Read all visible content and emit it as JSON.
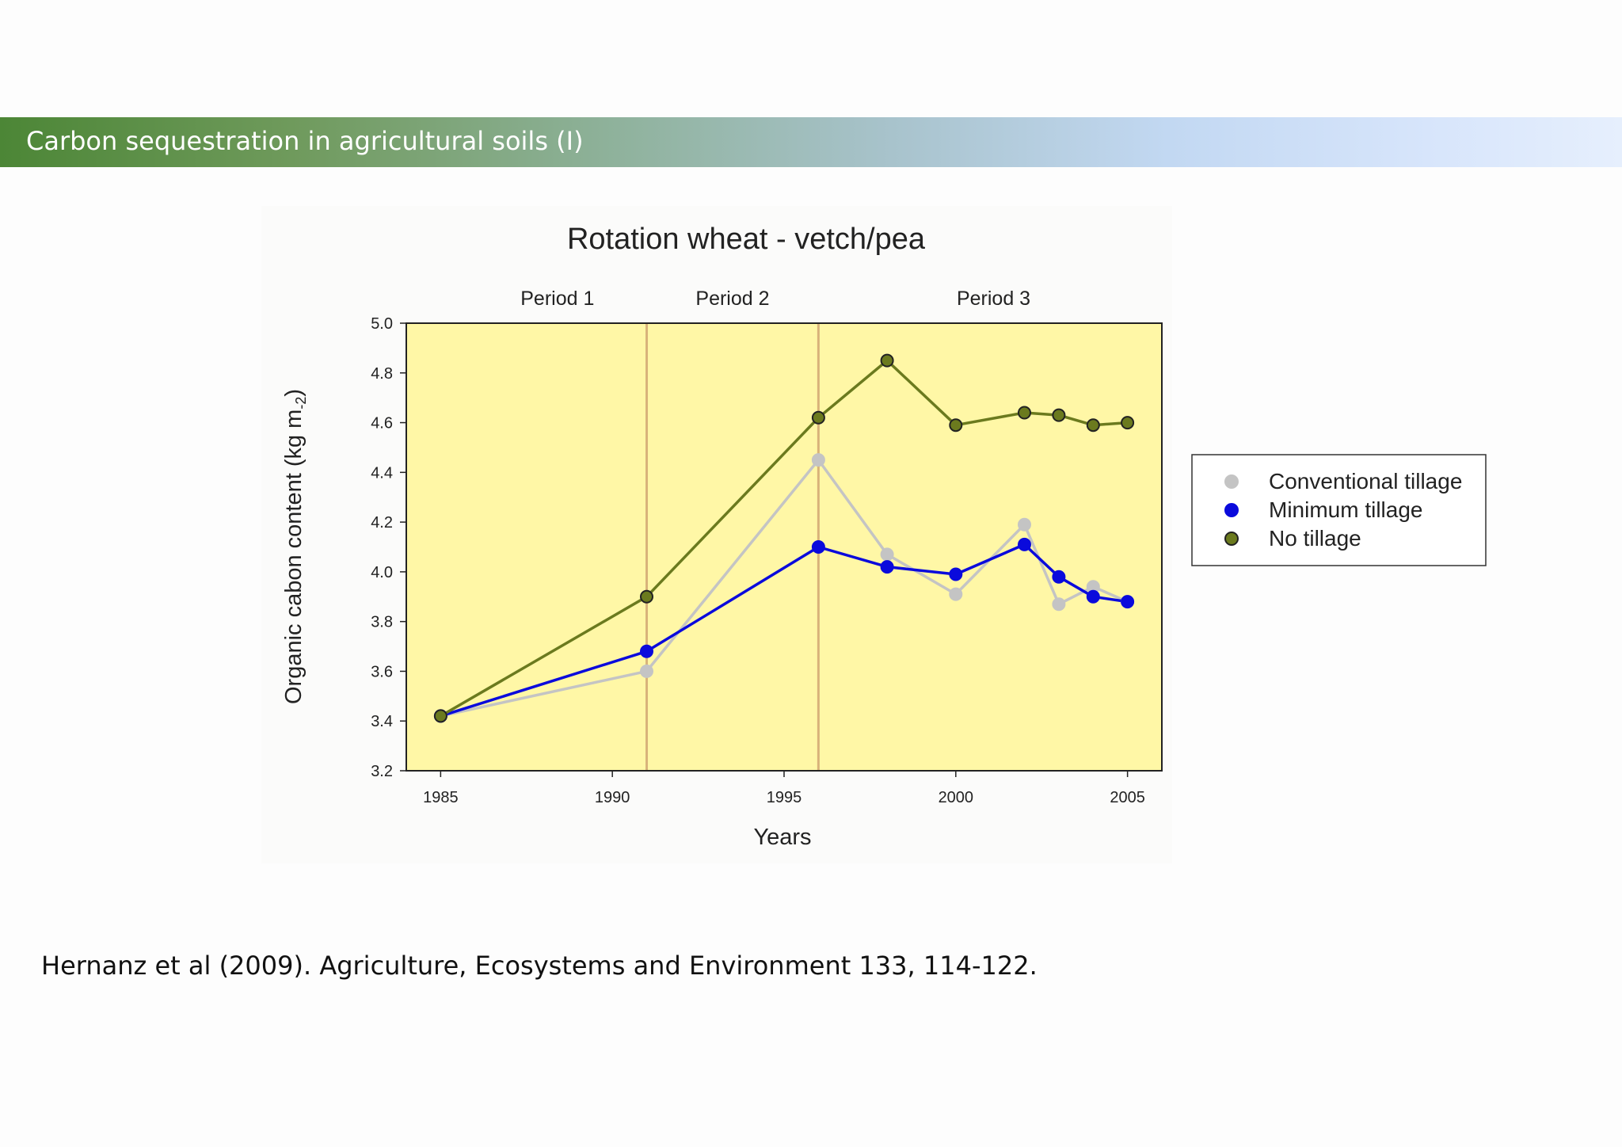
{
  "slide": {
    "title": "Carbon sequestration in agricultural soils (I)",
    "citation": "Hernanz et al (2009). Agriculture, Ecosystems and Environment 133, 114-122."
  },
  "chart_data": {
    "type": "line",
    "title": "Rotation wheat - vetch/pea",
    "xlabel": "Years",
    "ylabel": "Organic cabon content (kg m-2)",
    "ylabel_parts": {
      "main": "Organic cabon content (kg m",
      "sub": "-2",
      "close": ")"
    },
    "xlim": [
      1984,
      2006
    ],
    "ylim": [
      3.2,
      5.0
    ],
    "x_ticks": [
      "1985",
      "1990",
      "1995",
      "2000",
      "2005"
    ],
    "y_ticks": [
      "3.2",
      "3.4",
      "3.6",
      "3.8",
      "4.0",
      "4.2",
      "4.4",
      "4.6",
      "4.8",
      "5.0"
    ],
    "period_dividers": [
      1991,
      1996
    ],
    "periods": [
      {
        "label": "Period 1",
        "center": 1988.4
      },
      {
        "label": "Period 2",
        "center": 1993.5
      },
      {
        "label": "Period 3",
        "center": 2001.1
      }
    ],
    "plot_background": "#fff7a6",
    "divider_color": "#d8b27a",
    "grid": false,
    "legend_position": "right",
    "series": [
      {
        "name": "Conventional tillage",
        "color": "#c4c4c4",
        "marker_edge": "#c4c4c4",
        "x": [
          1985,
          1991,
          1996,
          1998,
          2000,
          2002,
          2003,
          2004,
          2005
        ],
        "values": [
          3.42,
          3.6,
          4.45,
          4.07,
          3.91,
          4.19,
          3.87,
          3.94,
          3.88
        ]
      },
      {
        "name": "Minimum tillage",
        "color": "#0a0adc",
        "marker_edge": "#0a0adc",
        "x": [
          1985,
          1991,
          1996,
          1998,
          2000,
          2002,
          2003,
          2004,
          2005
        ],
        "values": [
          3.42,
          3.68,
          4.1,
          4.02,
          3.99,
          4.11,
          3.98,
          3.9,
          3.88
        ]
      },
      {
        "name": "No tillage",
        "color": "#6b7a1e",
        "marker_edge": "#222222",
        "x": [
          1985,
          1991,
          1996,
          1998,
          2000,
          2002,
          2003,
          2004,
          2005
        ],
        "values": [
          3.42,
          3.9,
          4.62,
          4.85,
          4.59,
          4.64,
          4.63,
          4.59,
          4.6
        ]
      }
    ]
  }
}
